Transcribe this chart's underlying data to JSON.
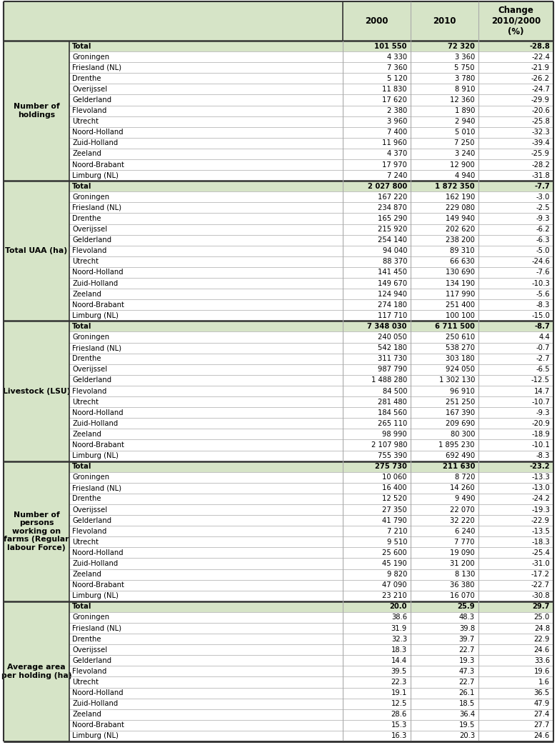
{
  "header_bg": "#d6e4c7",
  "total_bg": "#d6e4c7",
  "white_bg": "#ffffff",
  "border_color": "#aaaaaa",
  "thick_border": "#333333",
  "sections": [
    {
      "label": "Number of\nholdings",
      "rows": [
        {
          "name": "Total",
          "v2000": "101 550",
          "v2010": "72 320",
          "change": "-28.8",
          "is_total": true
        },
        {
          "name": "Groningen",
          "v2000": "4 330",
          "v2010": "3 360",
          "change": "-22.4"
        },
        {
          "name": "Friesland (NL)",
          "v2000": "7 360",
          "v2010": "5 750",
          "change": "-21.9"
        },
        {
          "name": "Drenthe",
          "v2000": "5 120",
          "v2010": "3 780",
          "change": "-26.2"
        },
        {
          "name": "Overijssel",
          "v2000": "11 830",
          "v2010": "8 910",
          "change": "-24.7"
        },
        {
          "name": "Gelderland",
          "v2000": "17 620",
          "v2010": "12 360",
          "change": "-29.9"
        },
        {
          "name": "Flevoland",
          "v2000": "2 380",
          "v2010": "1 890",
          "change": "-20.6"
        },
        {
          "name": "Utrecht",
          "v2000": "3 960",
          "v2010": "2 940",
          "change": "-25.8"
        },
        {
          "name": "Noord-Holland",
          "v2000": "7 400",
          "v2010": "5 010",
          "change": "-32.3"
        },
        {
          "name": "Zuid-Holland",
          "v2000": "11 960",
          "v2010": "7 250",
          "change": "-39.4"
        },
        {
          "name": "Zeeland",
          "v2000": "4 370",
          "v2010": "3 240",
          "change": "-25.9"
        },
        {
          "name": "Noord-Brabant",
          "v2000": "17 970",
          "v2010": "12 900",
          "change": "-28.2"
        },
        {
          "name": "Limburg (NL)",
          "v2000": "7 240",
          "v2010": "4 940",
          "change": "-31.8"
        }
      ]
    },
    {
      "label": "Total UAA (ha)",
      "rows": [
        {
          "name": "Total",
          "v2000": "2 027 800",
          "v2010": "1 872 350",
          "change": "-7.7",
          "is_total": true
        },
        {
          "name": "Groningen",
          "v2000": "167 220",
          "v2010": "162 190",
          "change": "-3.0"
        },
        {
          "name": "Friesland (NL)",
          "v2000": "234 870",
          "v2010": "229 080",
          "change": "-2.5"
        },
        {
          "name": "Drenthe",
          "v2000": "165 290",
          "v2010": "149 940",
          "change": "-9.3"
        },
        {
          "name": "Overijssel",
          "v2000": "215 920",
          "v2010": "202 620",
          "change": "-6.2"
        },
        {
          "name": "Gelderland",
          "v2000": "254 140",
          "v2010": "238 200",
          "change": "-6.3"
        },
        {
          "name": "Flevoland",
          "v2000": "94 040",
          "v2010": "89 310",
          "change": "-5.0"
        },
        {
          "name": "Utrecht",
          "v2000": "88 370",
          "v2010": "66 630",
          "change": "-24.6"
        },
        {
          "name": "Noord-Holland",
          "v2000": "141 450",
          "v2010": "130 690",
          "change": "-7.6"
        },
        {
          "name": "Zuid-Holland",
          "v2000": "149 670",
          "v2010": "134 190",
          "change": "-10.3"
        },
        {
          "name": "Zeeland",
          "v2000": "124 940",
          "v2010": "117 990",
          "change": "-5.6"
        },
        {
          "name": "Noord-Brabant",
          "v2000": "274 180",
          "v2010": "251 400",
          "change": "-8.3"
        },
        {
          "name": "Limburg (NL)",
          "v2000": "117 710",
          "v2010": "100 100",
          "change": "-15.0"
        }
      ]
    },
    {
      "label": "Livestock (LSU)",
      "rows": [
        {
          "name": "Total",
          "v2000": "7 348 030",
          "v2010": "6 711 500",
          "change": "-8.7",
          "is_total": true
        },
        {
          "name": "Groningen",
          "v2000": "240 050",
          "v2010": "250 610",
          "change": "4.4"
        },
        {
          "name": "Friesland (NL)",
          "v2000": "542 180",
          "v2010": "538 270",
          "change": "-0.7"
        },
        {
          "name": "Drenthe",
          "v2000": "311 730",
          "v2010": "303 180",
          "change": "-2.7"
        },
        {
          "name": "Overijssel",
          "v2000": "987 790",
          "v2010": "924 050",
          "change": "-6.5"
        },
        {
          "name": "Gelderland",
          "v2000": "1 488 280",
          "v2010": "1 302 130",
          "change": "-12.5"
        },
        {
          "name": "Flevoland",
          "v2000": "84 500",
          "v2010": "96 910",
          "change": "14.7"
        },
        {
          "name": "Utrecht",
          "v2000": "281 480",
          "v2010": "251 250",
          "change": "-10.7"
        },
        {
          "name": "Noord-Holland",
          "v2000": "184 560",
          "v2010": "167 390",
          "change": "-9.3"
        },
        {
          "name": "Zuid-Holland",
          "v2000": "265 110",
          "v2010": "209 690",
          "change": "-20.9"
        },
        {
          "name": "Zeeland",
          "v2000": "98 990",
          "v2010": "80 300",
          "change": "-18.9"
        },
        {
          "name": "Noord-Brabant",
          "v2000": "2 107 980",
          "v2010": "1 895 230",
          "change": "-10.1"
        },
        {
          "name": "Limburg (NL)",
          "v2000": "755 390",
          "v2010": "692 490",
          "change": "-8.3"
        }
      ]
    },
    {
      "label": "Number of\npersons\nworking on\nfarms (Regular\nlabour Force)",
      "rows": [
        {
          "name": "Total",
          "v2000": "275 730",
          "v2010": "211 630",
          "change": "-23.2",
          "is_total": true
        },
        {
          "name": "Groningen",
          "v2000": "10 060",
          "v2010": "8 720",
          "change": "-13.3"
        },
        {
          "name": "Friesland (NL)",
          "v2000": "16 400",
          "v2010": "14 260",
          "change": "-13.0"
        },
        {
          "name": "Drenthe",
          "v2000": "12 520",
          "v2010": "9 490",
          "change": "-24.2"
        },
        {
          "name": "Overijssel",
          "v2000": "27 350",
          "v2010": "22 070",
          "change": "-19.3"
        },
        {
          "name": "Gelderland",
          "v2000": "41 790",
          "v2010": "32 220",
          "change": "-22.9"
        },
        {
          "name": "Flevoland",
          "v2000": "7 210",
          "v2010": "6 240",
          "change": "-13.5"
        },
        {
          "name": "Utrecht",
          "v2000": "9 510",
          "v2010": "7 770",
          "change": "-18.3"
        },
        {
          "name": "Noord-Holland",
          "v2000": "25 600",
          "v2010": "19 090",
          "change": "-25.4"
        },
        {
          "name": "Zuid-Holland",
          "v2000": "45 190",
          "v2010": "31 200",
          "change": "-31.0"
        },
        {
          "name": "Zeeland",
          "v2000": "9 820",
          "v2010": "8 130",
          "change": "-17.2"
        },
        {
          "name": "Noord-Brabant",
          "v2000": "47 090",
          "v2010": "36 380",
          "change": "-22.7"
        },
        {
          "name": "Limburg (NL)",
          "v2000": "23 210",
          "v2010": "16 070",
          "change": "-30.8"
        }
      ]
    },
    {
      "label": "Average area\nper holding (ha)",
      "rows": [
        {
          "name": "Total",
          "v2000": "20.0",
          "v2010": "25.9",
          "change": "29.7",
          "is_total": true
        },
        {
          "name": "Groningen",
          "v2000": "38.6",
          "v2010": "48.3",
          "change": "25.0"
        },
        {
          "name": "Friesland (NL)",
          "v2000": "31.9",
          "v2010": "39.8",
          "change": "24.8"
        },
        {
          "name": "Drenthe",
          "v2000": "32.3",
          "v2010": "39.7",
          "change": "22.9"
        },
        {
          "name": "Overijssel",
          "v2000": "18.3",
          "v2010": "22.7",
          "change": "24.6"
        },
        {
          "name": "Gelderland",
          "v2000": "14.4",
          "v2010": "19.3",
          "change": "33.6"
        },
        {
          "name": "Flevoland",
          "v2000": "39.5",
          "v2010": "47.3",
          "change": "19.6"
        },
        {
          "name": "Utrecht",
          "v2000": "22.3",
          "v2010": "22.7",
          "change": "1.6"
        },
        {
          "name": "Noord-Holland",
          "v2000": "19.1",
          "v2010": "26.1",
          "change": "36.5"
        },
        {
          "name": "Zuid-Holland",
          "v2000": "12.5",
          "v2010": "18.5",
          "change": "47.9"
        },
        {
          "name": "Zeeland",
          "v2000": "28.6",
          "v2010": "36.4",
          "change": "27.4"
        },
        {
          "name": "Noord-Brabant",
          "v2000": "15.3",
          "v2010": "19.5",
          "change": "27.7"
        },
        {
          "name": "Limburg (NL)",
          "v2000": "16.3",
          "v2010": "20.3",
          "change": "24.6"
        }
      ]
    }
  ]
}
